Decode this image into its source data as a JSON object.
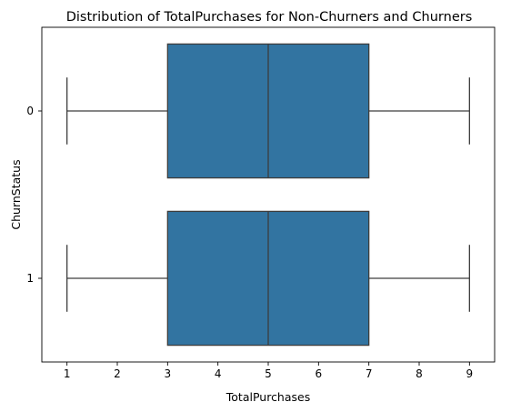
{
  "chart_data": {
    "type": "boxplot",
    "orientation": "horizontal",
    "title": "Distribution of TotalPurchases for Non-Churners and Churners",
    "xlabel": "TotalPurchases",
    "ylabel": "ChurnStatus",
    "xlim": [
      0.5,
      9.5
    ],
    "xticks": [
      "1",
      "2",
      "3",
      "4",
      "5",
      "6",
      "7",
      "8",
      "9"
    ],
    "categories": [
      "0",
      "1"
    ],
    "series": [
      {
        "name": "0",
        "min": 1,
        "q1": 3,
        "median": 5,
        "q3": 7,
        "max": 9
      },
      {
        "name": "1",
        "min": 1,
        "q1": 3,
        "median": 5,
        "q3": 7,
        "max": 9
      }
    ],
    "colors": {
      "box": "#3274a1",
      "line": "#3d3d3d",
      "axis": "#000000"
    }
  }
}
